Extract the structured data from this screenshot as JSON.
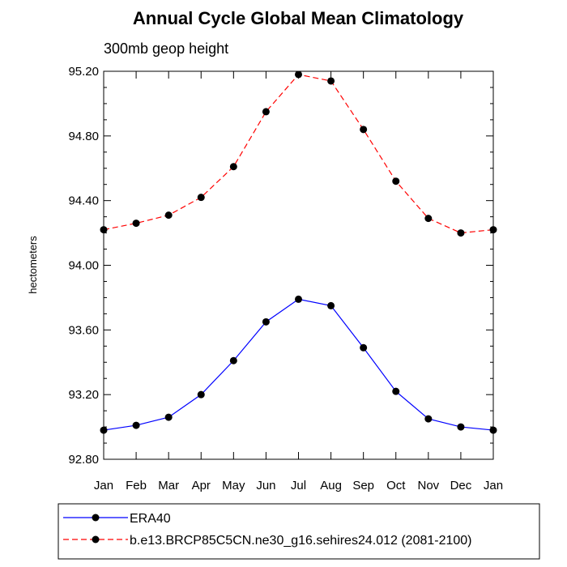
{
  "chart_data": {
    "type": "line",
    "title": "Annual Cycle Global Mean Climatology",
    "subtitle": "300mb geop height",
    "xlabel": "",
    "ylabel": "hectometers",
    "categories": [
      "Jan",
      "Feb",
      "Mar",
      "Apr",
      "May",
      "Jun",
      "Jul",
      "Aug",
      "Sep",
      "Oct",
      "Nov",
      "Dec",
      "Jan"
    ],
    "ylim": [
      92.8,
      95.2
    ],
    "yticks": [
      "92.80",
      "93.20",
      "93.60",
      "94.00",
      "94.40",
      "94.80",
      "95.20"
    ],
    "grid": false,
    "legend_position": "bottom",
    "series": [
      {
        "name": "ERA40",
        "color": "#0000ff",
        "dash": "solid",
        "marker": "filled-circle",
        "values": [
          92.98,
          93.01,
          93.06,
          93.2,
          93.41,
          93.65,
          93.79,
          93.75,
          93.49,
          93.22,
          93.05,
          93.0,
          92.98
        ]
      },
      {
        "name": "b.e13.BRCP85C5CN.ne30_g16.sehires24.012 (2081-2100)",
        "color": "#ff0000",
        "dash": "dashed",
        "marker": "filled-circle",
        "values": [
          94.22,
          94.26,
          94.31,
          94.42,
          94.61,
          94.95,
          95.18,
          95.14,
          94.84,
          94.52,
          94.29,
          94.2,
          94.22
        ]
      }
    ]
  }
}
